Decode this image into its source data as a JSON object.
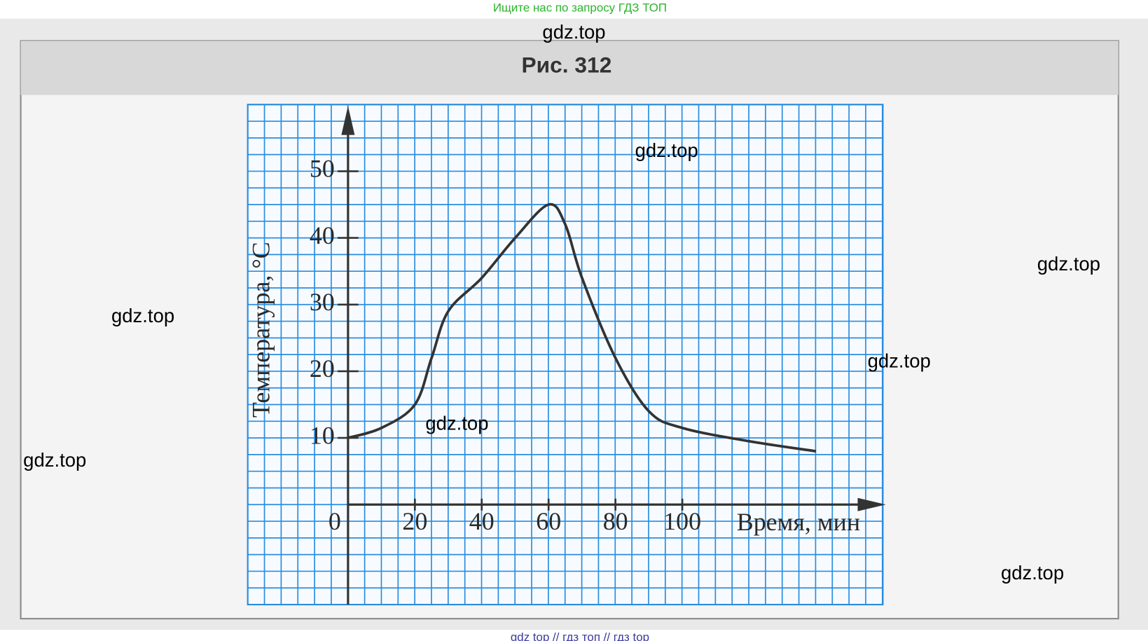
{
  "header_text": "Ищите нас по запросу ГДЗ ТОП",
  "footer_text": "gdz top  //  гдз топ  //  гдз top",
  "watermarks": [
    "gdz.top",
    "gdz.top",
    "gdz.top",
    "gdz.top",
    "gdz.top",
    "gdz.top",
    "gdz.top",
    "gdz.top"
  ],
  "chart_data": {
    "type": "line",
    "title": "Рис. 312",
    "xlabel": "Время, мин",
    "ylabel": "Температура, °C",
    "x": [
      0,
      10,
      20,
      25,
      30,
      40,
      50,
      60,
      65,
      70,
      80,
      90,
      100,
      120,
      140
    ],
    "values": [
      10,
      11.5,
      15,
      22,
      29,
      34,
      40,
      45,
      42,
      34,
      22,
      14,
      11.5,
      9.5,
      8
    ],
    "color": "#333333",
    "grid_color": "#2a8de0",
    "xlim": [
      -30,
      160
    ],
    "ylim": [
      -15,
      60
    ],
    "xticks": [
      0,
      20,
      40,
      60,
      80,
      100
    ],
    "yticks": [
      10,
      20,
      30,
      40,
      50
    ],
    "grid": true
  }
}
